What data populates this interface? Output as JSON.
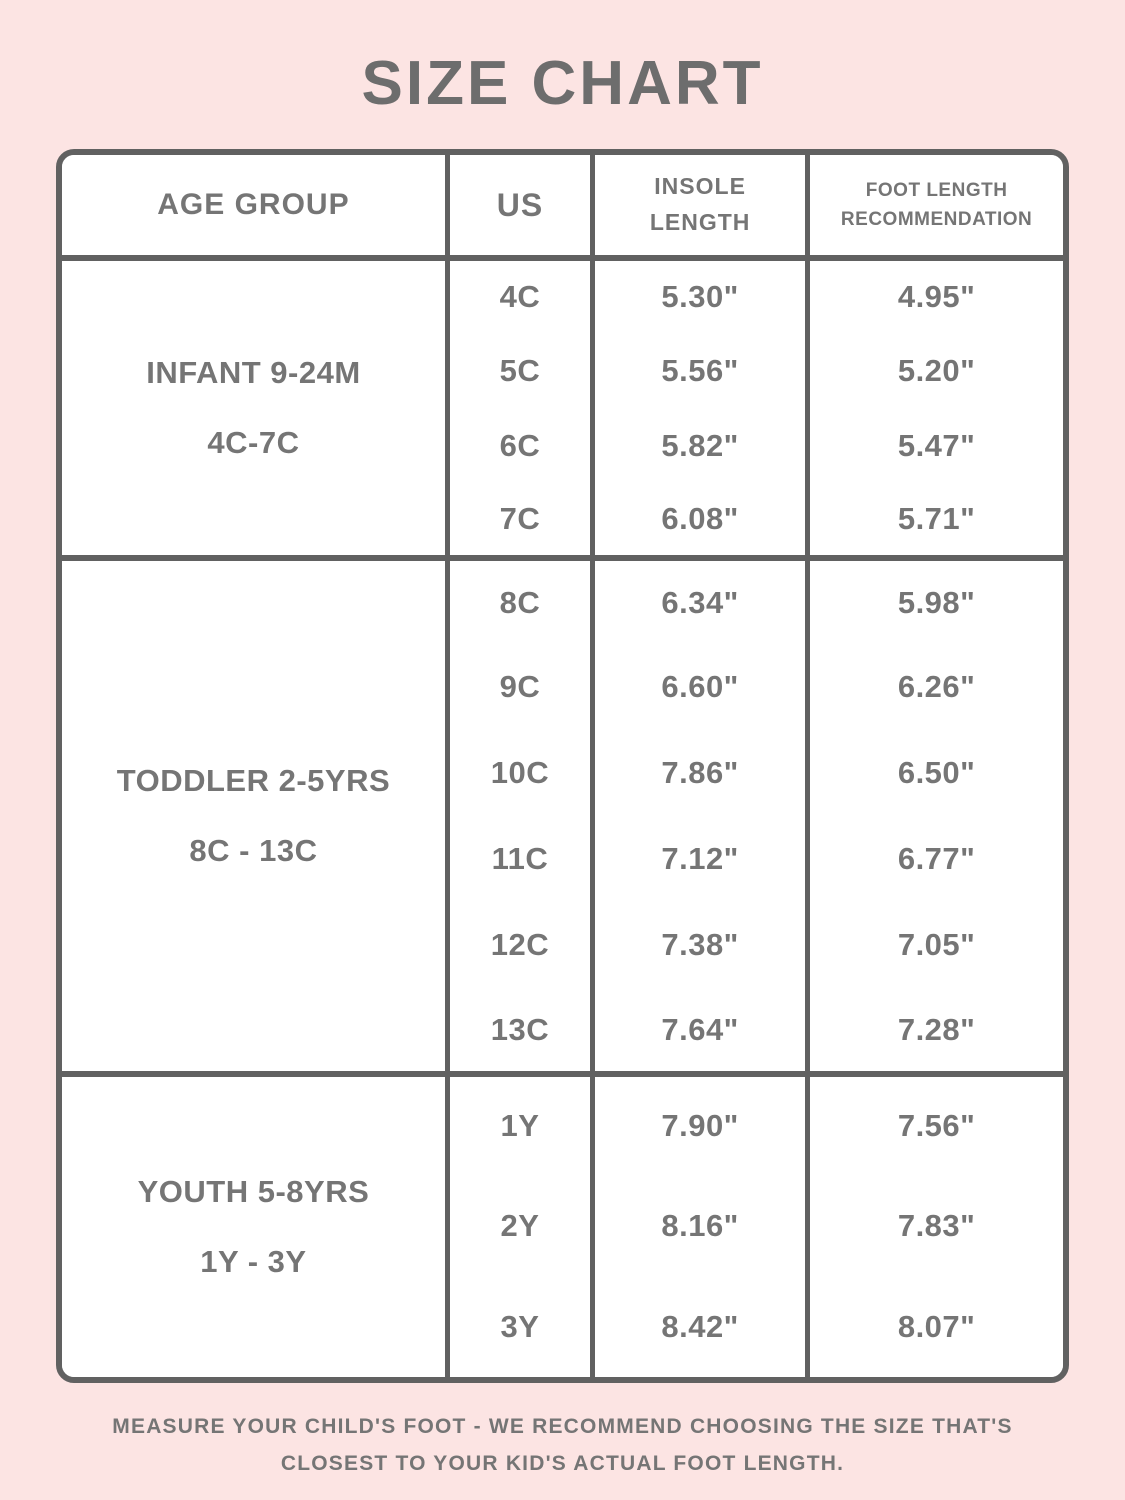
{
  "title": "SIZE CHART",
  "colors": {
    "background": "#fce4e3",
    "table_background": "#ffffff",
    "border": "#616161",
    "text": "#757575"
  },
  "table": {
    "headers": {
      "age_group": "AGE GROUP",
      "us": "US",
      "insole_line1": "INSOLE",
      "insole_line2": "LENGTH",
      "foot_line1": "FOOT LENGTH",
      "foot_line2": "RECOMMENDATION"
    },
    "groups": [
      {
        "label_line1": "INFANT 9-24M",
        "label_line2": "4C-7C",
        "rows": [
          {
            "us": "4C",
            "insole": "5.30\"",
            "foot": "4.95\""
          },
          {
            "us": "5C",
            "insole": "5.56\"",
            "foot": "5.20\""
          },
          {
            "us": "6C",
            "insole": "5.82\"",
            "foot": "5.47\""
          },
          {
            "us": "7C",
            "insole": "6.08\"",
            "foot": "5.71\""
          }
        ]
      },
      {
        "label_line1": "TODDLER 2-5YRS",
        "label_line2": "8C - 13C",
        "rows": [
          {
            "us": "8C",
            "insole": "6.34\"",
            "foot": "5.98\""
          },
          {
            "us": "9C",
            "insole": "6.60\"",
            "foot": "6.26\""
          },
          {
            "us": "10C",
            "insole": "7.86\"",
            "foot": "6.50\""
          },
          {
            "us": "11C",
            "insole": "7.12\"",
            "foot": "6.77\""
          },
          {
            "us": "12C",
            "insole": "7.38\"",
            "foot": "7.05\""
          },
          {
            "us": "13C",
            "insole": "7.64\"",
            "foot": "7.28\""
          }
        ]
      },
      {
        "label_line1": "YOUTH 5-8YRS",
        "label_line2": "1Y - 3Y",
        "rows": [
          {
            "us": "1Y",
            "insole": "7.90\"",
            "foot": "7.56\""
          },
          {
            "us": "2Y",
            "insole": "8.16\"",
            "foot": "7.83\""
          },
          {
            "us": "3Y",
            "insole": "8.42\"",
            "foot": "8.07\""
          }
        ]
      }
    ]
  },
  "footer": {
    "note": "MEASURE YOUR CHILD'S FOOT - WE RECOMMEND CHOOSING THE SIZE THAT'S CLOSEST TO YOUR KID'S ACTUAL FOOT LENGTH."
  },
  "chart_data": {
    "type": "table",
    "title": "SIZE CHART",
    "columns": [
      "AGE GROUP",
      "US",
      "INSOLE LENGTH",
      "FOOT LENGTH RECOMMENDATION"
    ],
    "rows": [
      [
        "INFANT 9-24M 4C-7C",
        "4C",
        "5.30\"",
        "4.95\""
      ],
      [
        "INFANT 9-24M 4C-7C",
        "5C",
        "5.56\"",
        "5.20\""
      ],
      [
        "INFANT 9-24M 4C-7C",
        "6C",
        "5.82\"",
        "5.47\""
      ],
      [
        "INFANT 9-24M 4C-7C",
        "7C",
        "6.08\"",
        "5.71\""
      ],
      [
        "TODDLER 2-5YRS 8C - 13C",
        "8C",
        "6.34\"",
        "5.98\""
      ],
      [
        "TODDLER 2-5YRS 8C - 13C",
        "9C",
        "6.60\"",
        "6.26\""
      ],
      [
        "TODDLER 2-5YRS 8C - 13C",
        "10C",
        "7.86\"",
        "6.50\""
      ],
      [
        "TODDLER 2-5YRS 8C - 13C",
        "11C",
        "7.12\"",
        "6.77\""
      ],
      [
        "TODDLER 2-5YRS 8C - 13C",
        "12C",
        "7.38\"",
        "7.05\""
      ],
      [
        "TODDLER 2-5YRS 8C - 13C",
        "13C",
        "7.64\"",
        "7.28\""
      ],
      [
        "YOUTH 5-8YRS 1Y - 3Y",
        "1Y",
        "7.90\"",
        "7.56\""
      ],
      [
        "YOUTH 5-8YRS 1Y - 3Y",
        "2Y",
        "8.16\"",
        "7.83\""
      ],
      [
        "YOUTH 5-8YRS 1Y - 3Y",
        "3Y",
        "8.42\"",
        "8.07\""
      ]
    ]
  }
}
